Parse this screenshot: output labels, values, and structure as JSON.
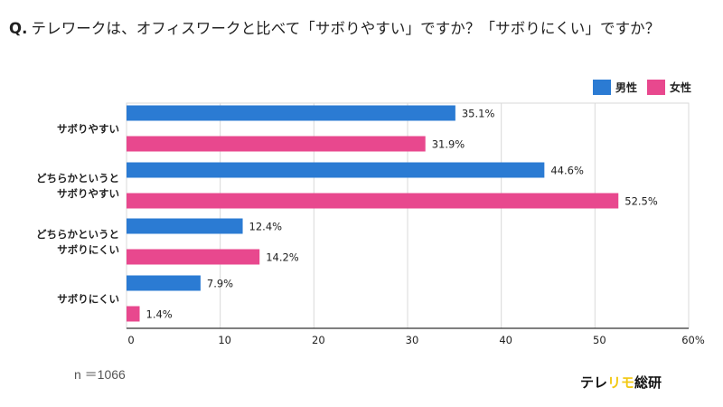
{
  "question": {
    "prefix": "Q.",
    "text": "テレワークは、オフィスワークと比べて「サボりやすい」ですか？「サボりにくい」ですか？"
  },
  "chart_data": {
    "type": "bar",
    "orientation": "horizontal",
    "categories": [
      [
        "サボりやすい"
      ],
      [
        "どちらかというと",
        "サボりやすい"
      ],
      [
        "どちらかというと",
        "サボりにくい"
      ],
      [
        "サボりにくい"
      ]
    ],
    "series": [
      {
        "name": "男性",
        "color": "#2b7bd3",
        "values": [
          35.1,
          44.6,
          12.4,
          7.9
        ]
      },
      {
        "name": "女性",
        "color": "#e8488e",
        "values": [
          31.9,
          52.5,
          14.2,
          1.4
        ]
      }
    ],
    "value_suffix": "%",
    "xlim": [
      0,
      60
    ],
    "xticks": [
      "0",
      "10",
      "20",
      "30",
      "40",
      "50",
      "60%"
    ],
    "grid": true,
    "legend_position": "top-right"
  },
  "footer": {
    "sample_size": "n ＝1066",
    "logo_left": "テレ",
    "logo_mid": "リモ",
    "logo_right": "総研"
  }
}
